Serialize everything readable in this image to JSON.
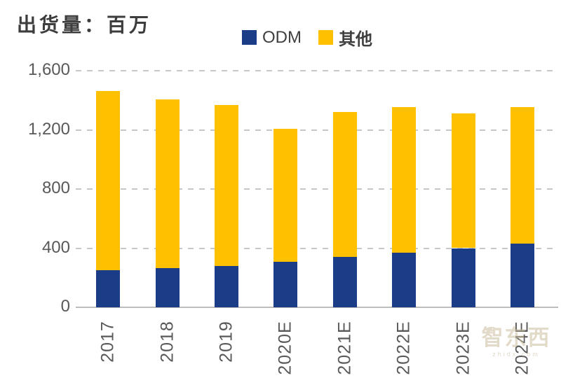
{
  "title": "出货量：百万",
  "legend": {
    "items": [
      {
        "label": "ODM",
        "color": "#1B3C87"
      },
      {
        "label": "其他",
        "color": "#FFC000"
      }
    ]
  },
  "watermark": {
    "text": "智东西",
    "subtext": "zhidx.com"
  },
  "colors": {
    "odm_blue": "#1B3C87",
    "other_yellow": "#FFC000",
    "axis_text": "#595959",
    "gridline": "#c8c8c8"
  },
  "chart_data": {
    "type": "bar",
    "stacked": true,
    "title": "出货量：百万",
    "categories": [
      "2017",
      "2018",
      "2019",
      "2020E",
      "2021E",
      "2022E",
      "2023E",
      "2024E"
    ],
    "series": [
      {
        "name": "ODM",
        "color": "#1B3C87",
        "values": [
          250,
          265,
          280,
          310,
          340,
          370,
          400,
          430
        ]
      },
      {
        "name": "其他",
        "color": "#FFC000",
        "values": [
          1215,
          1140,
          1090,
          895,
          980,
          985,
          910,
          925
        ]
      }
    ],
    "totals": [
      1465,
      1405,
      1370,
      1205,
      1320,
      1355,
      1310,
      1355
    ],
    "xlabel": "",
    "ylabel": "",
    "ylim": [
      0,
      1600
    ],
    "yticks": [
      0,
      400,
      800,
      1200,
      1600
    ],
    "ytick_labels": [
      "0",
      "400",
      "800",
      "1,200",
      "1,600"
    ],
    "grid": "horizontal-dashed",
    "legend_position": "top-center"
  }
}
